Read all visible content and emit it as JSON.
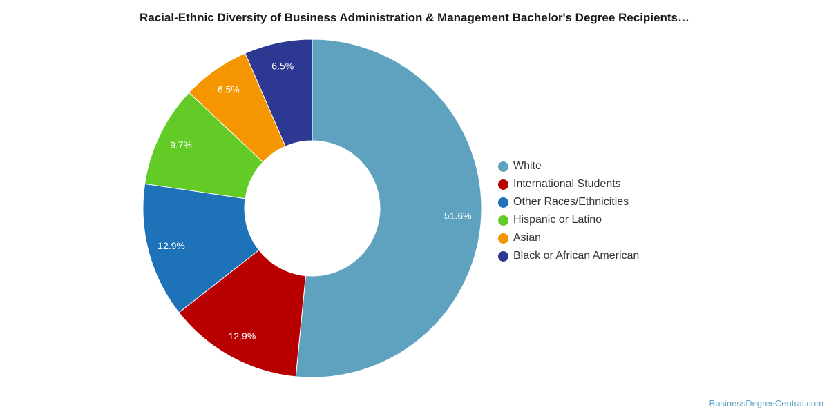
{
  "chart_data": {
    "type": "pie",
    "title": "Racial-Ethnic Diversity of Business Administration & Management Bachelor's Degree Recipients…",
    "labels": [
      "White",
      "International Students",
      "Other Races/Ethnicities",
      "Hispanic or Latino",
      "Asian",
      "Black or African American"
    ],
    "values": [
      51.6,
      12.9,
      12.9,
      9.7,
      6.5,
      6.5
    ],
    "value_labels": [
      "51.6%",
      "12.9%",
      "12.9%",
      "9.7%",
      "6.5%",
      "6.5%"
    ],
    "colors": [
      "#5fa2c0",
      "#b90000",
      "#1e72b8",
      "#63cb26",
      "#f59600",
      "#2c3891"
    ],
    "donut": true,
    "legend_position": "right"
  },
  "footer": {
    "source": "BusinessDegreeCentral.com"
  }
}
